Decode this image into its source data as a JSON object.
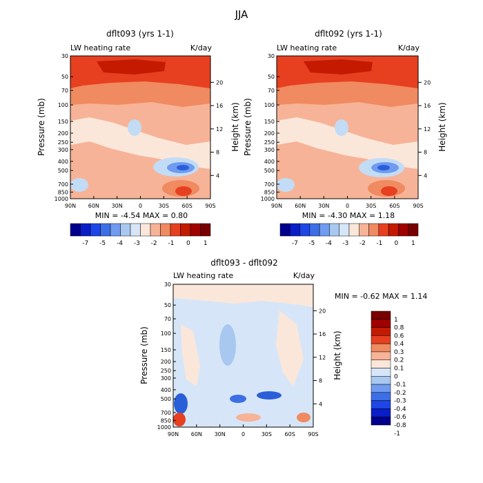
{
  "page": {
    "title": "JJA",
    "colors": {
      "deep_red": "#a00000",
      "red": "#e64020",
      "light_red": "#f7b397",
      "pale": "#fbe7da",
      "light_blue": "#c3dcf5",
      "blue": "#3c6ee6",
      "deep_blue": "#00008c"
    }
  },
  "chart_data": [
    {
      "type": "heatmap",
      "title": "dflt093 (yrs 1-1)",
      "left_label": "LW heating rate",
      "unit_label": "K/day",
      "ylabel": "Pressure (mb)",
      "ylabel_right": "Height (km)",
      "x_ticks": [
        "90N",
        "60N",
        "30N",
        "0",
        "30S",
        "60S",
        "90S"
      ],
      "y_ticks": [
        "30",
        "50",
        "70",
        "100",
        "150",
        "200",
        "250",
        "300",
        "400",
        "500",
        "700",
        "850",
        "1000"
      ],
      "y_ticks_right": [
        "20",
        "16",
        "12",
        "8",
        "4"
      ],
      "stats": "MIN = -4.54 MAX = 0.80",
      "colorbar": {
        "orientation": "horizontal",
        "labels": [
          "-7",
          "-5",
          "-4",
          "-3",
          "-2",
          "-1",
          "0",
          "1"
        ]
      }
    },
    {
      "type": "heatmap",
      "title": "dflt092 (yrs 1-1)",
      "left_label": "LW heating rate",
      "unit_label": "K/day",
      "ylabel": "Pressure (mb)",
      "ylabel_right": "Height (km)",
      "x_ticks": [
        "90N",
        "60N",
        "30N",
        "0",
        "30S",
        "60S",
        "90S"
      ],
      "y_ticks": [
        "30",
        "50",
        "70",
        "100",
        "150",
        "200",
        "250",
        "300",
        "400",
        "500",
        "700",
        "850",
        "1000"
      ],
      "y_ticks_right": [
        "20",
        "16",
        "12",
        "8",
        "4"
      ],
      "stats": "MIN = -4.30 MAX = 1.18",
      "colorbar": {
        "orientation": "horizontal",
        "labels": [
          "-7",
          "-5",
          "-4",
          "-3",
          "-2",
          "-1",
          "0",
          "1"
        ]
      }
    },
    {
      "type": "heatmap",
      "title": "dflt093 - dflt092",
      "left_label": "LW heating rate",
      "unit_label": "K/day",
      "ylabel": "Pressure (mb)",
      "ylabel_right": "Height (km)",
      "x_ticks": [
        "90N",
        "60N",
        "30N",
        "0",
        "30S",
        "60S",
        "90S"
      ],
      "y_ticks": [
        "30",
        "50",
        "70",
        "100",
        "150",
        "200",
        "250",
        "300",
        "400",
        "500",
        "700",
        "850",
        "1000"
      ],
      "y_ticks_right": [
        "20",
        "16",
        "12",
        "8",
        "4"
      ],
      "stats": "MIN = -0.62 MAX = 1.14",
      "colorbar": {
        "orientation": "vertical",
        "labels": [
          "1",
          "0.8",
          "0.6",
          "0.4",
          "0.3",
          "0.2",
          "0.1",
          "0",
          "-0.1",
          "-0.2",
          "-0.3",
          "-0.4",
          "-0.6",
          "-0.8",
          "-1"
        ]
      }
    }
  ]
}
